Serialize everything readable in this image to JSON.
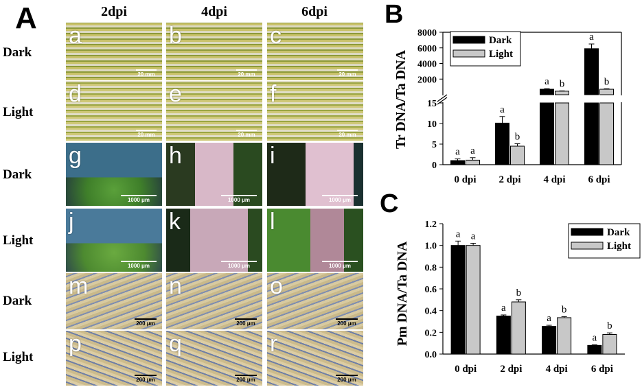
{
  "panelA": {
    "letter": "A",
    "columns": [
      "2dpi",
      "4dpi",
      "6dpi"
    ],
    "rows": [
      "Dark",
      "Light",
      "Dark",
      "Light",
      "Dark",
      "Light"
    ],
    "tiles": [
      {
        "label": "a",
        "scale": "20 mm"
      },
      {
        "label": "b",
        "scale": "20 mm"
      },
      {
        "label": "c",
        "scale": "20 mm"
      },
      {
        "label": "d",
        "scale": "20 mm"
      },
      {
        "label": "e",
        "scale": "20 mm"
      },
      {
        "label": "f",
        "scale": "20 mm"
      },
      {
        "label": "g",
        "scale": "1000 μm"
      },
      {
        "label": "h",
        "scale": "1000 μm"
      },
      {
        "label": "i",
        "scale": "1000 μm"
      },
      {
        "label": "j",
        "scale": "1000 μm"
      },
      {
        "label": "k",
        "scale": "1000 μm"
      },
      {
        "label": "l",
        "scale": "1000 μm"
      },
      {
        "label": "m",
        "scale": "200 μm"
      },
      {
        "label": "n",
        "scale": "200 μm"
      },
      {
        "label": "o",
        "scale": "200 μm"
      },
      {
        "label": "p",
        "scale": "200 μm"
      },
      {
        "label": "q",
        "scale": "200 μm"
      },
      {
        "label": "r",
        "scale": "200 μm"
      }
    ]
  },
  "chart_data": [
    {
      "panel": "B",
      "type": "bar",
      "ylabel": "Tr DNA/Ta DNA",
      "categories": [
        "0 dpi",
        "2 dpi",
        "4 dpi",
        "6 dpi"
      ],
      "series": [
        {
          "name": "Dark",
          "values": [
            1.0,
            10.1,
            700,
            5900
          ],
          "errors": [
            0.4,
            1.6,
            70,
            600
          ],
          "letters": [
            "a",
            "a",
            "a",
            "a"
          ],
          "color": "#000000"
        },
        {
          "name": "Light",
          "values": [
            1.1,
            4.5,
            450,
            700
          ],
          "errors": [
            0.6,
            0.6,
            40,
            60
          ],
          "letters": [
            "a",
            "b",
            "b",
            "b"
          ],
          "color": "#c8c8c8"
        }
      ],
      "axis_break": {
        "lower": [
          0,
          15
        ],
        "upper": [
          0,
          8000
        ]
      },
      "lower_ticks": [
        0,
        5,
        10,
        15
      ],
      "upper_ticks": [
        2000,
        4000,
        6000,
        8000
      ],
      "legend": "top-right"
    },
    {
      "panel": "C",
      "type": "bar",
      "ylabel": "Pm DNA/Ta DNA",
      "categories": [
        "0 dpi",
        "2 dpi",
        "4 dpi",
        "6 dpi"
      ],
      "series": [
        {
          "name": "Dark",
          "values": [
            1.0,
            0.35,
            0.255,
            0.08
          ],
          "errors": [
            0.04,
            0.01,
            0.01,
            0.005
          ],
          "letters": [
            "a",
            "a",
            "a",
            "a"
          ],
          "color": "#000000"
        },
        {
          "name": "Light",
          "values": [
            1.0,
            0.48,
            0.335,
            0.18
          ],
          "errors": [
            0.02,
            0.02,
            0.01,
            0.015
          ],
          "letters": [
            "a",
            "b",
            "b",
            "b"
          ],
          "color": "#c8c8c8"
        }
      ],
      "ylim": [
        0,
        1.2
      ],
      "ticks": [
        "0.0",
        "0.2",
        "0.4",
        "0.6",
        "0.8",
        "1.0",
        "1.2"
      ],
      "legend": "top-right"
    }
  ]
}
